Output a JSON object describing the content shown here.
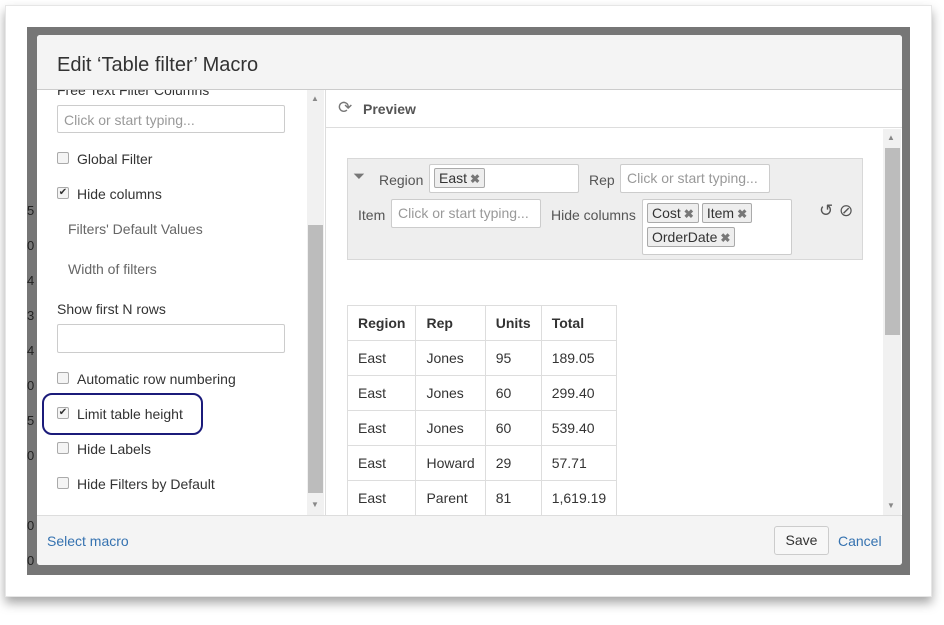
{
  "dialog": {
    "title": "Edit ‘Table filter’ Macro"
  },
  "background": {
    "numbers": [
      "5",
      "0",
      "4",
      "3",
      "4",
      "0",
      "5",
      "0",
      "0",
      "0"
    ]
  },
  "left": {
    "cut_label": "Free Text Filter Columns",
    "free_text_placeholder": "Click or start typing...",
    "global_filter": {
      "label": "Global Filter",
      "checked": false
    },
    "hide_columns": {
      "label": "Hide columns",
      "checked": true
    },
    "filters_default_values": "Filters' Default Values",
    "width_of_filters": "Width of filters",
    "show_first_n_rows": {
      "label": "Show first N rows",
      "value": ""
    },
    "automatic_row_numbering": {
      "label": "Automatic row numbering",
      "checked": false
    },
    "limit_table_height": {
      "label": "Limit table height",
      "checked": true
    },
    "hide_labels": {
      "label": "Hide Labels",
      "checked": false
    },
    "hide_filters_by_default": {
      "label": "Hide Filters by Default",
      "checked": false
    }
  },
  "preview": {
    "title": "Preview",
    "filters": {
      "region_label": "Region",
      "region_tags": [
        "East"
      ],
      "rep_label": "Rep",
      "rep_placeholder": "Click or start typing...",
      "item_label": "Item",
      "item_placeholder": "Click or start typing...",
      "hide_columns_label": "Hide columns",
      "hide_columns_tags": [
        "Cost",
        "Item",
        "OrderDate"
      ]
    },
    "table": {
      "headers": [
        "Region",
        "Rep",
        "Units",
        "Total"
      ],
      "rows": [
        [
          "East",
          "Jones",
          "95",
          "189.05"
        ],
        [
          "East",
          "Jones",
          "60",
          "299.40"
        ],
        [
          "East",
          "Jones",
          "60",
          "539.40"
        ],
        [
          "East",
          "Howard",
          "29",
          "57.71"
        ],
        [
          "East",
          "Parent",
          "81",
          "1,619.19"
        ]
      ]
    }
  },
  "footer": {
    "select_macro": "Select macro",
    "save": "Save",
    "cancel": "Cancel"
  },
  "colors": {
    "link": "#3572b0",
    "highlight": "#1b1b7a"
  }
}
